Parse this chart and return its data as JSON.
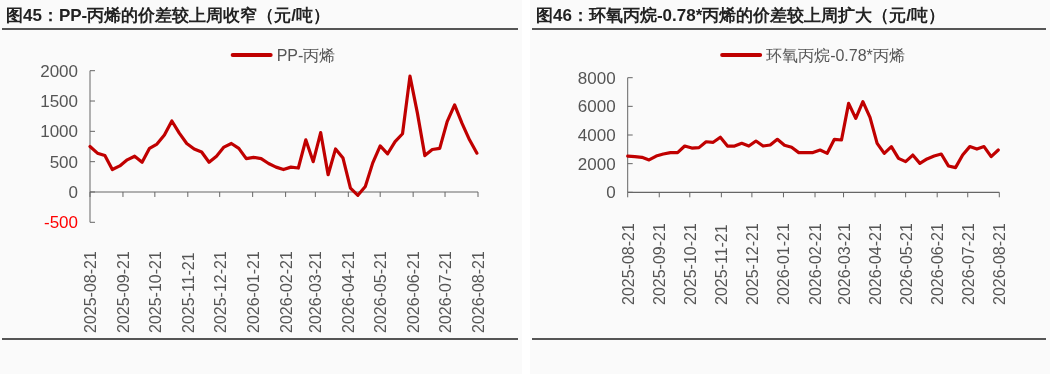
{
  "chart_data": [
    {
      "type": "line",
      "title": "图45：PP-丙烯的价差较上周收窄（元/吨）",
      "legend": "top",
      "x": [
        "2025-08-21",
        "2025-08-28",
        "2025-09-04",
        "2025-09-11",
        "2025-09-18",
        "2025-09-25",
        "2025-10-02",
        "2025-10-09",
        "2025-10-16",
        "2025-10-23",
        "2025-10-30",
        "2025-11-06",
        "2025-11-13",
        "2025-11-20",
        "2025-11-27",
        "2025-12-04",
        "2025-12-11",
        "2025-12-18",
        "2025-12-25",
        "2026-01-01",
        "2026-01-08",
        "2026-01-15",
        "2026-01-22",
        "2026-01-29",
        "2026-02-05",
        "2026-02-12",
        "2026-02-19",
        "2026-02-26",
        "2026-03-05",
        "2026-03-12",
        "2026-03-19",
        "2026-03-26",
        "2026-04-02",
        "2026-04-09",
        "2026-04-16",
        "2026-04-23",
        "2026-04-30",
        "2026-05-07",
        "2026-05-14",
        "2026-05-21",
        "2026-05-28",
        "2026-06-04",
        "2026-06-11",
        "2026-06-18",
        "2026-06-25",
        "2026-07-02",
        "2026-07-09",
        "2026-07-16",
        "2026-07-23",
        "2026-07-30",
        "2026-08-06",
        "2026-08-13",
        "2026-08-20"
      ],
      "series": [
        {
          "name": "PP-丙烯",
          "color": "#c00000",
          "values": [
            750,
            640,
            600,
            370,
            430,
            530,
            590,
            490,
            720,
            790,
            940,
            1170,
            970,
            800,
            710,
            660,
            490,
            590,
            740,
            800,
            720,
            550,
            570,
            550,
            470,
            410,
            370,
            410,
            395,
            860,
            500,
            980,
            285,
            710,
            560,
            65,
            -55,
            90,
            480,
            760,
            630,
            830,
            960,
            1910,
            1300,
            600,
            700,
            720,
            1160,
            1435,
            1130,
            860,
            640
          ]
        }
      ],
      "xlim": [
        "2025-08-21",
        "2026-08-21"
      ],
      "xticks": [
        "2025-08-21",
        "2025-09-21",
        "2025-10-21",
        "2025-11-21",
        "2025-12-21",
        "2026-01-21",
        "2026-02-21",
        "2026-03-21",
        "2026-04-21",
        "2026-05-21",
        "2026-06-21",
        "2026-07-21",
        "2026-08-21"
      ],
      "ylim": [
        -500,
        2000
      ],
      "yticks": [
        -500,
        0,
        500,
        1000,
        1500,
        2000
      ]
    },
    {
      "type": "line",
      "title": "图46：环氧丙烷-0.78*丙烯的价差较上周扩大（元/吨）",
      "legend": "top",
      "x": [
        "2025-08-21",
        "2025-08-28",
        "2025-09-04",
        "2025-09-11",
        "2025-09-18",
        "2025-09-25",
        "2025-10-02",
        "2025-10-09",
        "2025-10-16",
        "2025-10-23",
        "2025-10-30",
        "2025-11-06",
        "2025-11-13",
        "2025-11-20",
        "2025-11-27",
        "2025-12-04",
        "2025-12-11",
        "2025-12-18",
        "2025-12-25",
        "2026-01-01",
        "2026-01-08",
        "2026-01-15",
        "2026-01-22",
        "2026-01-29",
        "2026-02-05",
        "2026-02-12",
        "2026-02-19",
        "2026-02-26",
        "2026-03-05",
        "2026-03-12",
        "2026-03-19",
        "2026-03-26",
        "2026-04-02",
        "2026-04-09",
        "2026-04-16",
        "2026-04-23",
        "2026-04-30",
        "2026-05-07",
        "2026-05-14",
        "2026-05-21",
        "2026-05-28",
        "2026-06-04",
        "2026-06-11",
        "2026-06-18",
        "2026-06-25",
        "2026-07-02",
        "2026-07-09",
        "2026-07-16",
        "2026-07-23",
        "2026-07-30",
        "2026-08-06",
        "2026-08-13",
        "2026-08-20"
      ],
      "series": [
        {
          "name": "环氧丙烷-0.78*丙烯",
          "color": "#c00000",
          "values": [
            2530,
            2490,
            2440,
            2260,
            2530,
            2670,
            2770,
            2770,
            3230,
            3090,
            3120,
            3530,
            3490,
            3840,
            3230,
            3230,
            3420,
            3230,
            3580,
            3230,
            3300,
            3700,
            3280,
            3140,
            2770,
            2770,
            2770,
            2950,
            2720,
            3700,
            3650,
            6210,
            5160,
            6330,
            5230,
            3420,
            2720,
            3190,
            2370,
            2140,
            2600,
            2020,
            2330,
            2530,
            2670,
            1840,
            1720,
            2600,
            3190,
            3020,
            3190,
            2490,
            2950
          ]
        }
      ],
      "xlim": [
        "2025-08-21",
        "2026-08-21"
      ],
      "xticks": [
        "2025-08-21",
        "2025-09-21",
        "2025-10-21",
        "2025-11-21",
        "2025-12-21",
        "2026-01-21",
        "2026-02-21",
        "2026-03-21",
        "2026-04-21",
        "2026-05-21",
        "2026-06-21",
        "2026-07-21",
        "2026-08-21"
      ],
      "ylim": [
        0,
        8000
      ],
      "yticks": [
        0,
        2000,
        4000,
        6000,
        8000
      ]
    }
  ]
}
